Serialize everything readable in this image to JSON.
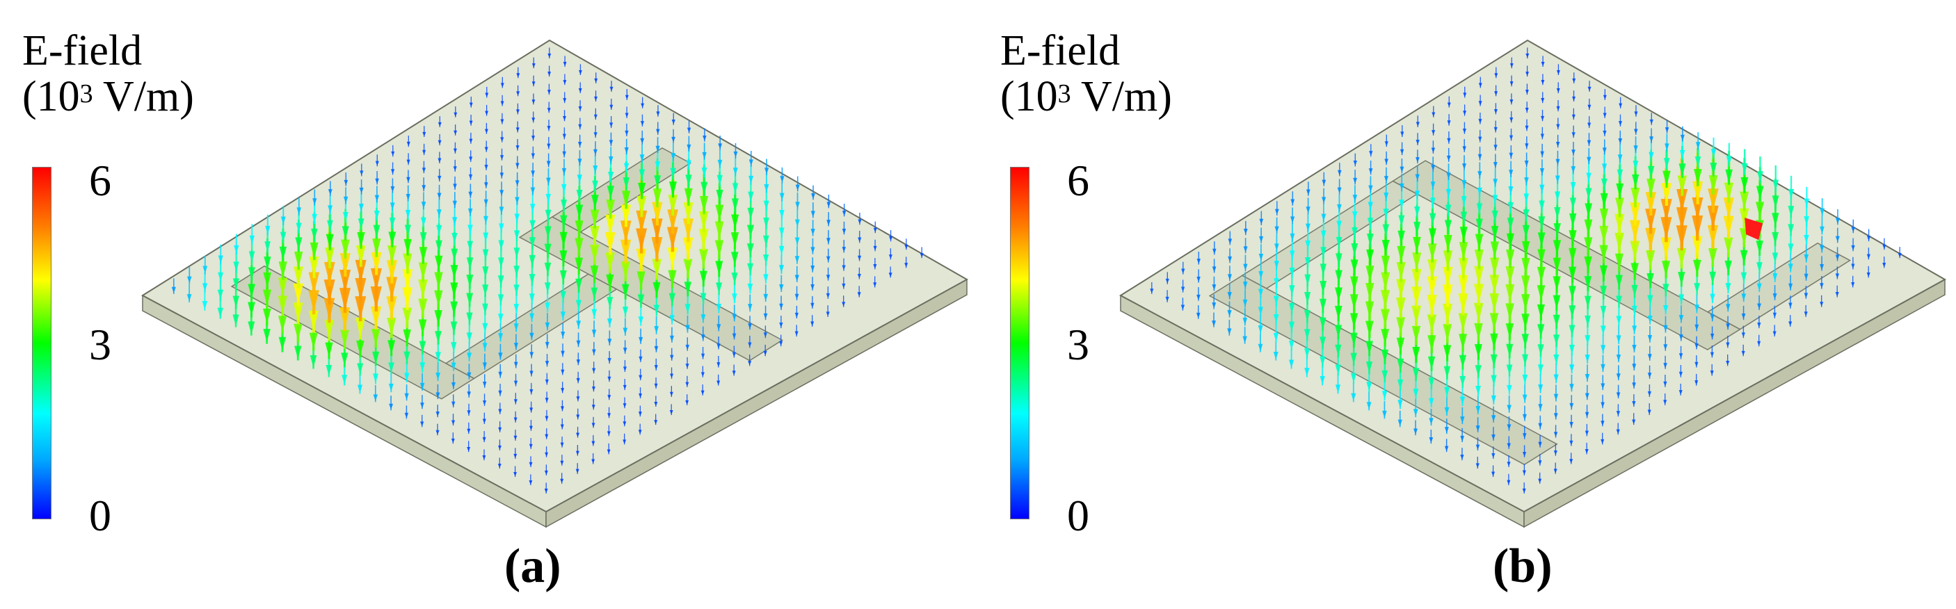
{
  "panels": [
    {
      "id": "a",
      "legend": {
        "title_line1": "E-field",
        "title_base": "(10",
        "title_exp": "3",
        "title_unit": " V/m)",
        "ticks": [
          "6",
          "3",
          "0"
        ]
      },
      "caption": "(a)"
    },
    {
      "id": "b",
      "legend": {
        "title_line1": "E-field",
        "title_base": "(10",
        "title_exp": "3",
        "title_unit": " V/m)",
        "ticks": [
          "6",
          "3",
          "0"
        ]
      },
      "caption": "(b)"
    }
  ],
  "colorbar": {
    "min": 0,
    "max": 6,
    "colors": [
      "#0000ff",
      "#00ffff",
      "#00ff00",
      "#ffff00",
      "#ff0000"
    ]
  }
}
